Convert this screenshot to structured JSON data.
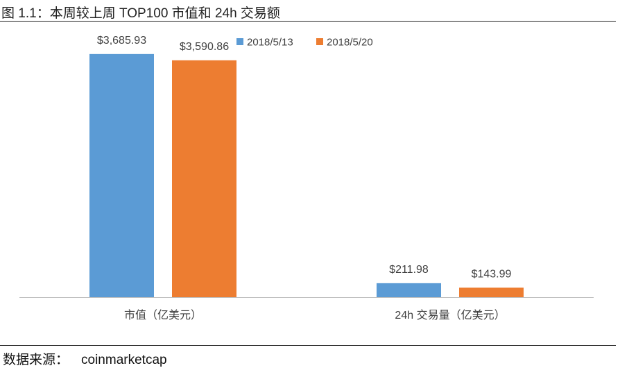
{
  "caption": "图 1.1：本周较上周 TOP100 市值和 24h 交易额",
  "source": {
    "label": "数据来源：",
    "value": "coinmarketcap"
  },
  "colors": {
    "series_1": "#5b9bd5",
    "series_2": "#ed7d31",
    "axis": "#bfbfbf",
    "label_text": "#404040"
  },
  "chart_data": {
    "type": "bar",
    "categories": [
      "市值（亿美元）",
      "24h 交易量（亿美元）"
    ],
    "series": [
      {
        "name": "2018/5/13",
        "values": [
          3685.93,
          211.98
        ],
        "labels": [
          "$3,685.93",
          "$211.98"
        ]
      },
      {
        "name": "2018/5/20",
        "values": [
          3590.86,
          143.99
        ],
        "labels": [
          "$3,590.86",
          "$143.99"
        ]
      }
    ],
    "title": "",
    "xlabel": "",
    "ylabel": "",
    "ylim": [
      0,
      4000
    ],
    "grid": false,
    "legend": "top-center"
  }
}
